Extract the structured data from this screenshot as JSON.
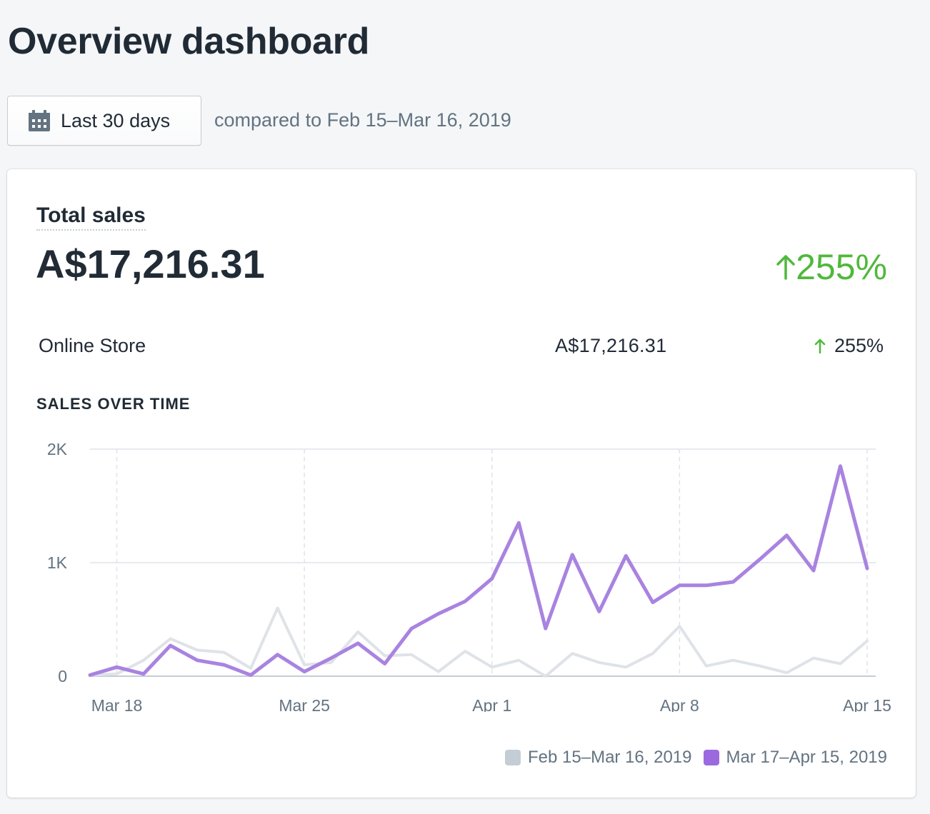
{
  "header": {
    "title": "Overview dashboard"
  },
  "date_filter": {
    "button_label": "Last 30 days",
    "icon": "calendar-icon",
    "comparison_text": "compared to Feb 15–Mar 16, 2019"
  },
  "total_sales": {
    "title": "Total sales",
    "value": "A$17,216.31",
    "change": "255%",
    "change_direction": "up",
    "change_color": "#50b83c"
  },
  "breakdown": [
    {
      "label": "Online Store",
      "value": "A$17,216.31",
      "change": "255%",
      "change_direction": "up"
    }
  ],
  "sales_over_time": {
    "title": "SALES OVER TIME"
  },
  "chart_data": {
    "type": "line",
    "x": [
      "2019-03-17",
      "2019-03-18",
      "2019-03-19",
      "2019-03-20",
      "2019-03-21",
      "2019-03-22",
      "2019-03-23",
      "2019-03-24",
      "2019-03-25",
      "2019-03-26",
      "2019-03-27",
      "2019-03-28",
      "2019-03-29",
      "2019-03-30",
      "2019-03-31",
      "2019-04-01",
      "2019-04-02",
      "2019-04-03",
      "2019-04-04",
      "2019-04-05",
      "2019-04-06",
      "2019-04-07",
      "2019-04-08",
      "2019-04-09",
      "2019-04-10",
      "2019-04-11",
      "2019-04-12",
      "2019-04-13",
      "2019-04-14",
      "2019-04-15"
    ],
    "x_ticks": [
      {
        "index": 1,
        "label": "Mar 18"
      },
      {
        "index": 8,
        "label": "Mar 25"
      },
      {
        "index": 15,
        "label": "Apr 1"
      },
      {
        "index": 22,
        "label": "Apr 8"
      },
      {
        "index": 29,
        "label": "Apr 15"
      }
    ],
    "y_ticks": [
      {
        "value": 0,
        "label": "0"
      },
      {
        "value": 1000,
        "label": "1K"
      },
      {
        "value": 2000,
        "label": "2K"
      }
    ],
    "ylim": [
      0,
      2000
    ],
    "grid": true,
    "legend_position": "bottom-right",
    "series": [
      {
        "name": "Feb 15–Mar 16, 2019",
        "color": "#c4cdd5",
        "line_color": "#dfe3e8",
        "values": [
          10,
          20,
          140,
          330,
          230,
          210,
          70,
          600,
          100,
          120,
          390,
          180,
          190,
          40,
          220,
          80,
          140,
          0,
          200,
          120,
          80,
          200,
          440,
          90,
          140,
          90,
          30,
          160,
          110,
          310
        ]
      },
      {
        "name": "Mar 17–Apr 15, 2019",
        "color": "#9c6ade",
        "line_color": "#a983e0",
        "values": [
          10,
          80,
          20,
          270,
          140,
          100,
          10,
          190,
          40,
          160,
          290,
          110,
          420,
          550,
          660,
          860,
          1350,
          420,
          1070,
          570,
          1060,
          650,
          800,
          800,
          830,
          1030,
          1240,
          930,
          1850,
          950
        ]
      }
    ]
  }
}
